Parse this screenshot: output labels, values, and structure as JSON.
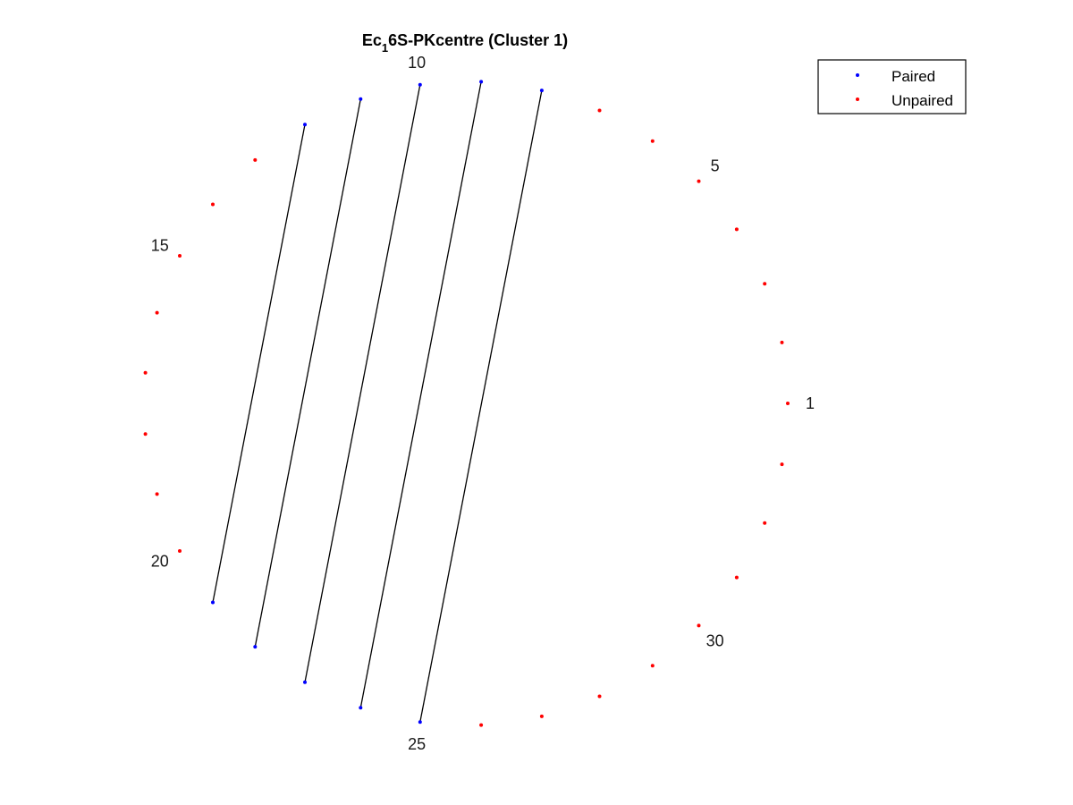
{
  "chart_data": {
    "type": "scatter",
    "title_parts": [
      "Ec",
      "1",
      "6S-PKcentre (Cluster 1)"
    ],
    "total_positions": 33,
    "start_position": 1,
    "direction": "counterclockwise",
    "position_labels": [
      "1",
      "5",
      "10",
      "15",
      "20",
      "25",
      "30"
    ],
    "pairs": [
      [
        8,
        25
      ],
      [
        9,
        24
      ],
      [
        10,
        23
      ],
      [
        11,
        22
      ],
      [
        12,
        21
      ]
    ],
    "series": [
      {
        "name": "Paired",
        "color": "#0000ff",
        "positions": [
          8,
          9,
          10,
          11,
          12,
          21,
          22,
          23,
          24,
          25
        ]
      },
      {
        "name": "Unpaired",
        "color": "#ff0000",
        "positions": [
          1,
          2,
          3,
          4,
          5,
          6,
          7,
          13,
          14,
          15,
          16,
          17,
          18,
          19,
          20,
          26,
          27,
          28,
          29,
          30,
          31,
          32,
          33
        ]
      }
    ],
    "pair_line_color": "#000000",
    "legend_position": "top-right",
    "grid": false
  }
}
